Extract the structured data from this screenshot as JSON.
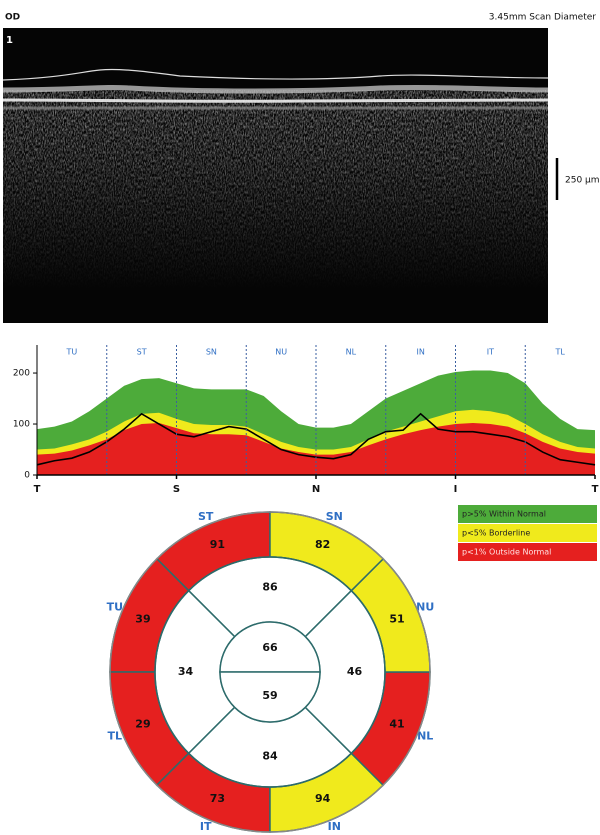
{
  "header": {
    "eye": "OD",
    "scan_diameter": "3.45mm Scan Diameter",
    "scan_number": "1",
    "scale_bar": "250 µm"
  },
  "chart_data": [
    {
      "type": "tsnit",
      "categories": [
        "T",
        null,
        null,
        null,
        null,
        null,
        null,
        null,
        "S",
        null,
        null,
        null,
        null,
        null,
        null,
        null,
        "N",
        null,
        null,
        null,
        null,
        null,
        null,
        null,
        "I",
        null,
        null,
        null,
        null,
        null,
        null,
        null,
        "T"
      ],
      "sectors": [
        "TU",
        "ST",
        "SN",
        "NU",
        "NL",
        "IN",
        "IT",
        "TL"
      ],
      "ylim": [
        0,
        255
      ],
      "yticks": [
        0,
        100,
        200
      ],
      "series": [
        {
          "name": "p>5% Within Normal",
          "color": "#4dab3a",
          "kind": "area",
          "values": [
            90,
            95,
            105,
            125,
            150,
            175,
            188,
            190,
            180,
            170,
            168,
            168,
            168,
            155,
            125,
            100,
            93,
            93,
            100,
            125,
            150,
            165,
            180,
            195,
            202,
            205,
            205,
            200,
            180,
            140,
            110,
            90,
            88
          ]
        },
        {
          "name": "p<5% Borderline",
          "color": "#f0ea1c",
          "kind": "area",
          "values": [
            50,
            52,
            60,
            70,
            85,
            105,
            120,
            122,
            110,
            100,
            98,
            98,
            95,
            80,
            65,
            55,
            50,
            50,
            55,
            70,
            85,
            95,
            105,
            115,
            125,
            128,
            125,
            118,
            100,
            80,
            65,
            55,
            52
          ]
        },
        {
          "name": "p<1% Outside Normal",
          "color": "#e5201f",
          "kind": "area",
          "values": [
            40,
            42,
            48,
            58,
            70,
            88,
            100,
            102,
            92,
            82,
            80,
            80,
            78,
            65,
            52,
            45,
            40,
            40,
            45,
            58,
            70,
            80,
            88,
            95,
            100,
            102,
            100,
            95,
            82,
            65,
            52,
            45,
            42
          ]
        },
        {
          "color": "#000000",
          "kind": "line",
          "values": [
            20,
            28,
            33,
            45,
            65,
            90,
            120,
            100,
            80,
            75,
            85,
            95,
            90,
            70,
            50,
            40,
            35,
            32,
            40,
            70,
            85,
            88,
            120,
            90,
            85,
            85,
            80,
            75,
            65,
            45,
            30,
            25,
            20
          ]
        }
      ]
    },
    {
      "type": "ring",
      "sectors": [
        {
          "label": "ST",
          "value": 91,
          "color": "#e5201f"
        },
        {
          "label": "TU",
          "value": 39,
          "color": "#e5201f"
        },
        {
          "label": "TL",
          "value": 29,
          "color": "#e5201f"
        },
        {
          "label": "IT",
          "value": 73,
          "color": "#e5201f"
        },
        {
          "label": "IN",
          "value": 94,
          "color": "#f0ea1c"
        },
        {
          "label": "NL",
          "value": 41,
          "color": "#e5201f"
        },
        {
          "label": "NU",
          "value": 51,
          "color": "#f0ea1c"
        },
        {
          "label": "SN",
          "value": 82,
          "color": "#f0ea1c"
        }
      ],
      "quadrant_values": [
        86,
        34,
        84,
        46
      ],
      "center_values": [
        66,
        59
      ]
    }
  ]
}
